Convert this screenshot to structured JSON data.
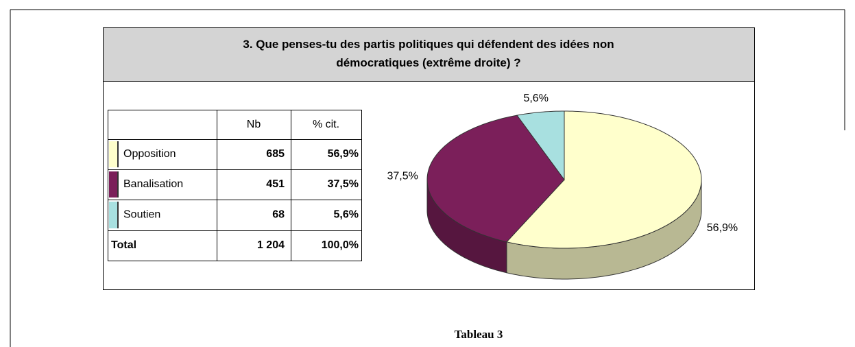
{
  "title": "3. Que penses-tu des partis politiques qui défendent des idées non démocratiques (extrême droite) ?",
  "table": {
    "header": [
      "Nb",
      "% cit."
    ],
    "rows": [
      [
        "Opposition",
        "685",
        "56,9%"
      ],
      [
        "Banalisation",
        "451",
        "37,5%"
      ],
      [
        "Soutien",
        "68",
        "5,6%"
      ]
    ],
    "total": [
      "Total",
      "1 204",
      "100,0%"
    ]
  },
  "chart_data": {
    "type": "pie",
    "values": [
      56.9,
      37.5,
      5.6
    ],
    "value_labels": [
      "56,9%",
      "37,5%",
      "5,6%"
    ],
    "colors": [
      "#ffffcc",
      "#7b1f5a",
      "#a8e0e0"
    ]
  },
  "caption": "Tableau 3"
}
